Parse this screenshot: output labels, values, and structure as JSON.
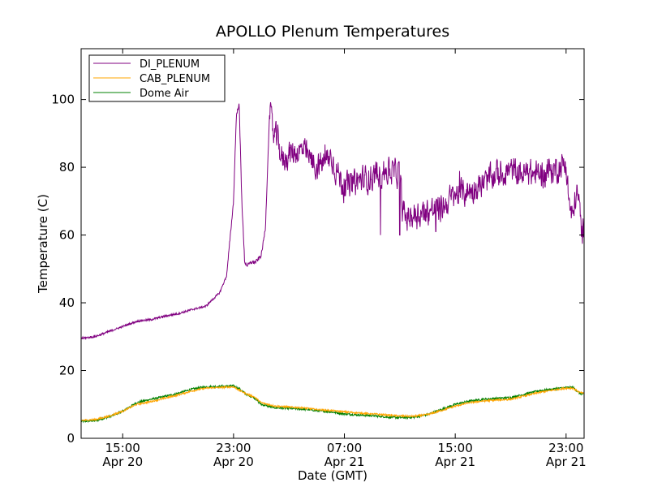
{
  "chart_data": {
    "type": "line",
    "title": "APOLLO Plenum Temperatures",
    "xlabel": "Date (GMT)",
    "ylabel": "Temperature (C)",
    "xlim_hours": [
      0,
      36.3
    ],
    "ylim": [
      0,
      115
    ],
    "yticks": [
      0,
      20,
      40,
      60,
      80,
      100
    ],
    "xticks": [
      {
        "hour": 3,
        "time": "15:00",
        "date": "Apr 20"
      },
      {
        "hour": 11,
        "time": "23:00",
        "date": "Apr 20"
      },
      {
        "hour": 19,
        "time": "07:00",
        "date": "Apr 21"
      },
      {
        "hour": 27,
        "time": "15:00",
        "date": "Apr 21"
      },
      {
        "hour": 35,
        "time": "23:00",
        "date": "Apr 21"
      }
    ],
    "x_start": "Apr 20 12:00 GMT (approx.)",
    "legend_position": "upper-left",
    "series": [
      {
        "name": "DI_PLENUM",
        "color": "#800080",
        "noise": 3.5,
        "x": [
          0,
          1,
          2,
          3,
          4,
          4.5,
          5,
          6,
          7,
          8,
          9,
          10,
          10.5,
          11,
          11.2,
          11.4,
          11.6,
          11.8,
          12.0,
          12.3,
          12.6,
          13.0,
          13.3,
          13.6,
          13.9,
          14.2,
          14.5,
          15,
          16,
          17,
          18,
          19,
          20,
          21,
          22,
          23,
          23.2,
          23.5,
          24,
          25,
          26,
          27,
          28,
          29,
          30,
          31,
          32,
          33,
          34,
          35,
          35.1,
          35.3,
          35.5,
          35.7,
          35.9,
          36.1,
          36.3
        ],
        "y": [
          29.5,
          30,
          31.5,
          33,
          34.5,
          34.8,
          35,
          36,
          36.8,
          38,
          39,
          43,
          48,
          70,
          95,
          99,
          70,
          52,
          51,
          52,
          52,
          54,
          62,
          96,
          90,
          88,
          82,
          84,
          85,
          80,
          83,
          74,
          76,
          77,
          79,
          78,
          67,
          65,
          66,
          67,
          68,
          72,
          73,
          75,
          78,
          79,
          78,
          78,
          79,
          81,
          75,
          67,
          65,
          72,
          71,
          61,
          61
        ],
        "spikes": [
          [
            21.6,
            60
          ],
          [
            23.0,
            60
          ],
          [
            25.6,
            61
          ]
        ]
      },
      {
        "name": "CAB_PLENUM",
        "color": "#ffa500",
        "noise": 0.25,
        "x": [
          0,
          1,
          2,
          3,
          4,
          5,
          6,
          7,
          8,
          9,
          10,
          11,
          11.5,
          12,
          12.5,
          13,
          14,
          15,
          16,
          17,
          18,
          19,
          20,
          21,
          22,
          23,
          24,
          25,
          26,
          27,
          28,
          29,
          30,
          31,
          32,
          33,
          34,
          35,
          35.5,
          36,
          36.3
        ],
        "y": [
          5.3,
          5.5,
          6.5,
          8,
          10,
          10.8,
          11.8,
          12.8,
          14,
          14.8,
          15,
          15.2,
          14,
          13,
          12.2,
          10.5,
          9.5,
          9.2,
          9,
          8.5,
          8.2,
          7.8,
          7.5,
          7.2,
          6.9,
          6.6,
          6.5,
          7,
          8.2,
          9.5,
          10.5,
          11,
          11.3,
          11.5,
          12.5,
          13.5,
          14.2,
          14.8,
          14.8,
          13.5,
          13.2
        ]
      },
      {
        "name": "Dome Air",
        "color": "#008000",
        "noise": 0.3,
        "x": [
          0,
          1,
          2,
          3,
          4,
          5,
          6,
          7,
          8,
          9,
          10,
          11,
          11.5,
          12,
          12.5,
          13,
          14,
          15,
          16,
          17,
          18,
          19,
          20,
          21,
          22,
          23,
          24,
          25,
          26,
          27,
          28,
          29,
          30,
          31,
          32,
          33,
          34,
          35,
          35.5,
          36,
          36.3
        ],
        "y": [
          5,
          5.2,
          6.3,
          8,
          10.5,
          11.5,
          12.3,
          13.3,
          14.5,
          15.2,
          15.3,
          15.5,
          14.3,
          12.8,
          12,
          10,
          9,
          8.8,
          8.6,
          8.2,
          7.8,
          7.2,
          6.9,
          6.7,
          6.3,
          6.1,
          6.2,
          7,
          8.5,
          10,
          11,
          11.5,
          11.8,
          12,
          13,
          14,
          14.5,
          15,
          15,
          13.2,
          13
        ]
      }
    ]
  }
}
